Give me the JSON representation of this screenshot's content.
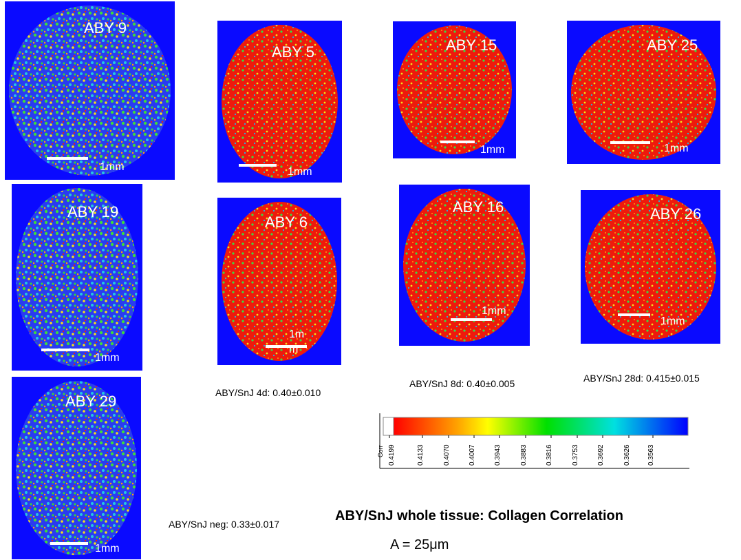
{
  "panels": [
    {
      "label": "ABY 9",
      "scale_label": "1mm"
    },
    {
      "label": "ABY 19",
      "scale_label": "1mm"
    },
    {
      "label": "ABY 29",
      "scale_label": "1mm"
    },
    {
      "label": "ABY 5",
      "scale_label": "1mm"
    },
    {
      "label": "ABY 6",
      "scale_label": [
        "1m",
        "m"
      ]
    },
    {
      "label": "ABY 15",
      "scale_label": "1mm"
    },
    {
      "label": "ABY 16",
      "scale_label": "1mm"
    },
    {
      "label": "ABY 25",
      "scale_label": "1mm"
    },
    {
      "label": "ABY 26",
      "scale_label": "1mm"
    }
  ],
  "captions": [
    "ABY/SnJ 4d: 0.40±0.010",
    "ABY/SnJ 8d: 0.40±0.005",
    "ABY/SnJ 28d: 0.415±0.015",
    "ABY/SnJ neg: 0.33±0.017"
  ],
  "colorbar": {
    "label": "Corr",
    "ticks": [
      "0.4199",
      "0.4133",
      "0.4070",
      "0.4007",
      "0.3943",
      "0.3883",
      "0.3816",
      "0.3753",
      "0.3692",
      "0.3626",
      "0.3563"
    ]
  },
  "title": "ABY/SnJ whole tissue: Collagen Correlation",
  "subtitle": "A = 25μm"
}
